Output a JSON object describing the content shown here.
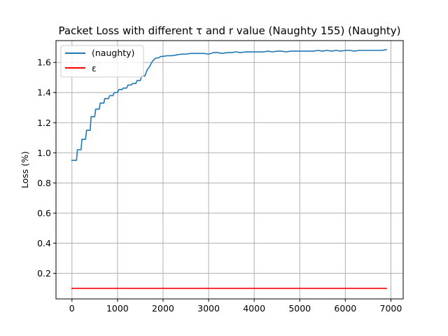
{
  "chart_data": {
    "type": "line",
    "title": "Packet Loss with different τ and r value (Naughty 155) (Naughty)",
    "xlabel": "",
    "ylabel": "Loss (%)",
    "xlim": [
      -350,
      7270
    ],
    "ylim": [
      0.03,
      1.745
    ],
    "xticks": [
      0,
      1000,
      2000,
      3000,
      4000,
      5000,
      6000,
      7000
    ],
    "yticks": [
      0.2,
      0.4,
      0.6,
      0.8,
      1.0,
      1.2,
      1.4,
      1.6
    ],
    "xtick_labels": [
      "0",
      "1000",
      "2000",
      "3000",
      "4000",
      "5000",
      "6000",
      "7000"
    ],
    "ytick_labels": [
      "0.2",
      "0.4",
      "0.6",
      "0.8",
      "1.0",
      "1.2",
      "1.4",
      "1.6"
    ],
    "grid": true,
    "legend_position": "top-left",
    "series": [
      {
        "name": "(naughty)",
        "color": "#1f77b4",
        "x": [
          0,
          100,
          120,
          200,
          220,
          300,
          320,
          400,
          420,
          500,
          520,
          600,
          620,
          700,
          720,
          800,
          830,
          900,
          930,
          1000,
          1030,
          1100,
          1130,
          1200,
          1230,
          1300,
          1330,
          1400,
          1430,
          1500,
          1530,
          1600,
          1650,
          1700,
          1750,
          1800,
          1850,
          1900,
          1950,
          2000,
          2100,
          2200,
          2300,
          2400,
          2500,
          2600,
          2700,
          2800,
          2900,
          3000,
          3100,
          3200,
          3300,
          3400,
          3500,
          3600,
          3700,
          3800,
          3900,
          4000,
          4100,
          4200,
          4300,
          4400,
          4500,
          4600,
          4700,
          4800,
          4900,
          5000,
          5100,
          5200,
          5300,
          5400,
          5500,
          5600,
          5700,
          5800,
          5900,
          6000,
          6100,
          6200,
          6300,
          6400,
          6500,
          6600,
          6700,
          6800,
          6900
        ],
        "y": [
          0.95,
          0.95,
          1.02,
          1.02,
          1.09,
          1.09,
          1.15,
          1.15,
          1.24,
          1.24,
          1.29,
          1.29,
          1.33,
          1.33,
          1.36,
          1.36,
          1.38,
          1.38,
          1.4,
          1.4,
          1.42,
          1.42,
          1.43,
          1.43,
          1.45,
          1.45,
          1.46,
          1.46,
          1.48,
          1.48,
          1.51,
          1.51,
          1.55,
          1.57,
          1.6,
          1.62,
          1.63,
          1.63,
          1.64,
          1.64,
          1.645,
          1.645,
          1.65,
          1.655,
          1.655,
          1.66,
          1.66,
          1.66,
          1.66,
          1.655,
          1.665,
          1.665,
          1.66,
          1.665,
          1.665,
          1.67,
          1.665,
          1.67,
          1.67,
          1.67,
          1.67,
          1.67,
          1.675,
          1.67,
          1.675,
          1.675,
          1.67,
          1.675,
          1.675,
          1.675,
          1.675,
          1.675,
          1.675,
          1.68,
          1.675,
          1.68,
          1.675,
          1.68,
          1.675,
          1.68,
          1.68,
          1.675,
          1.68,
          1.68,
          1.68,
          1.68,
          1.68,
          1.68,
          1.685
        ]
      },
      {
        "name": "ε",
        "color": "#ff0000",
        "x": [
          0,
          6900
        ],
        "y": [
          0.1,
          0.1
        ]
      }
    ]
  }
}
